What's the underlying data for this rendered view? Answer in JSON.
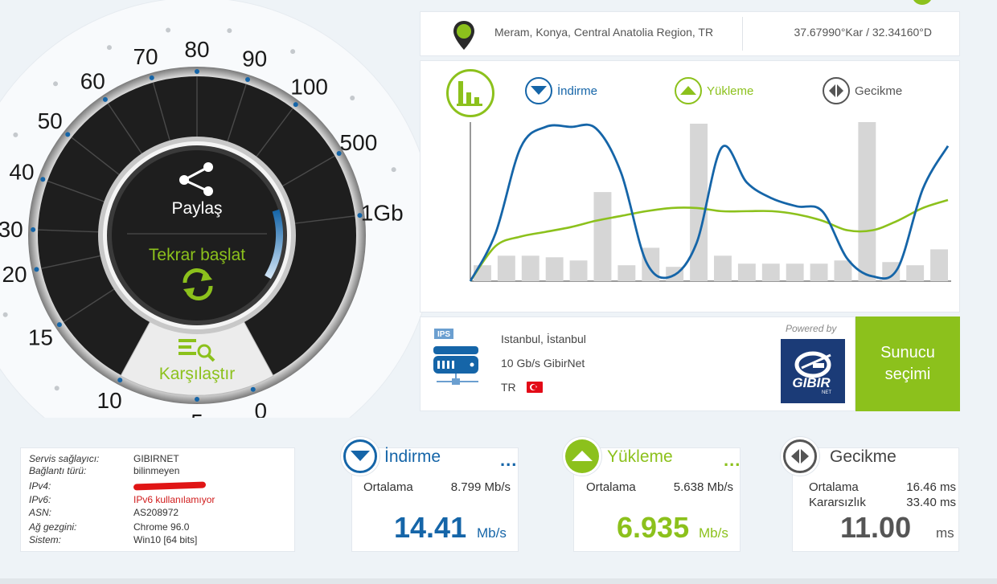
{
  "location": {
    "place": "Meram, Konya, Central Anatolia Region, TR",
    "coords": "37.67990°Kar / 32.34160°D"
  },
  "gauge": {
    "scale_labels": [
      "0",
      "5",
      "10",
      "15",
      "20",
      "30",
      "40",
      "50",
      "60",
      "70",
      "80",
      "90",
      "100",
      "500",
      "1Gb"
    ],
    "share_label": "Paylaş",
    "restart_label": "Tekrar başlat",
    "compare_label": "Karşılaştır"
  },
  "legend": {
    "download": "İndirme",
    "upload": "Yükleme",
    "latency": "Gecikme"
  },
  "colors": {
    "download": "#1565a8",
    "upload": "#8cc11c",
    "latency_bars": "#d6d6d6",
    "accent": "#8cc11c"
  },
  "chart_data": {
    "type": "line",
    "x_count": 20,
    "series": [
      {
        "name": "İndirme",
        "color": "#1565a8",
        "values": [
          0,
          30,
          84,
          97,
          97,
          96,
          68,
          12,
          3,
          24,
          84,
          62,
          52,
          47,
          44,
          14,
          3,
          8,
          58,
          85
        ]
      },
      {
        "name": "Yükleme",
        "color": "#8cc11c",
        "values": [
          0,
          22,
          28,
          31,
          34,
          38,
          41,
          44,
          46,
          46,
          44,
          44,
          44,
          42,
          38,
          32,
          32,
          38,
          46,
          51
        ]
      }
    ],
    "latency_bars": [
      10,
      16,
      16,
      15,
      13,
      56,
      10,
      21,
      9,
      99,
      16,
      11,
      11,
      11,
      11,
      13,
      102,
      12,
      10,
      20
    ],
    "ylim": [
      0,
      100
    ],
    "grid": false,
    "legend_position": "top"
  },
  "server": {
    "city": "Istanbul, İstanbul",
    "speed": "10 Gb/s GibirNet",
    "country": "TR",
    "ips_label": "IPS",
    "powered_by": "Powered by",
    "logo_text": "GIBIR",
    "logo_sub": "NET",
    "select_button": "Sunucu seçimi"
  },
  "info": {
    "rows": [
      {
        "key": "Servis sağlayıcı:",
        "value": "GIBIRNET"
      },
      {
        "key": "Bağlantı türü:",
        "value": "bilinmeyen"
      },
      {
        "key": "IPv4:",
        "value": ""
      },
      {
        "key": "IPv6:",
        "value": "IPv6 kullanılamıyor"
      },
      {
        "key": "ASN:",
        "value": "AS208972"
      },
      {
        "key": "Ağ gezgini:",
        "value": "Chrome 96.0"
      },
      {
        "key": "Sistem:",
        "value": "Win10 [64 bits]"
      }
    ]
  },
  "download_card": {
    "title": "İndirme",
    "more": "...",
    "avg_label": "Ortalama",
    "avg_value": "8.799 Mb/s",
    "value": "14.41",
    "unit": "Mb/s"
  },
  "upload_card": {
    "title": "Yükleme",
    "more": "...",
    "avg_label": "Ortalama",
    "avg_value": "5.638 Mb/s",
    "value": "6.935",
    "unit": "Mb/s"
  },
  "latency_card": {
    "title": "Gecikme",
    "avg_label": "Ortalama",
    "avg_value": "16.46 ms",
    "jitter_label": "Kararsızlık",
    "jitter_value": "33.40 ms",
    "value": "11.00",
    "unit": "ms"
  }
}
